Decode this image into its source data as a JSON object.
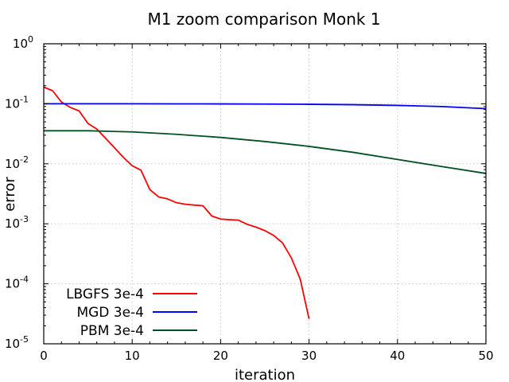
{
  "chart_data": {
    "type": "line",
    "title": "M1 zoom comparison Monk 1",
    "xlabel": "iteration",
    "ylabel": "error",
    "xlim": [
      0,
      50
    ],
    "ylim": [
      1e-05,
      1
    ],
    "yscale": "log",
    "grid": true,
    "legend_position": "lower-left",
    "xticks": [
      "0",
      "10",
      "20",
      "30",
      "40",
      "50"
    ],
    "yticks": [
      {
        "base": "10",
        "exp": "0",
        "value": 1
      },
      {
        "base": "10",
        "exp": "-1",
        "value": 0.1
      },
      {
        "base": "10",
        "exp": "-2",
        "value": 0.01
      },
      {
        "base": "10",
        "exp": "-3",
        "value": 0.001
      },
      {
        "base": "10",
        "exp": "-4",
        "value": 0.0001
      },
      {
        "base": "10",
        "exp": "-5",
        "value": 1e-05
      }
    ],
    "series": [
      {
        "name": "LBGFS 3e-4",
        "color": "#ff0000",
        "x": [
          0,
          1,
          2,
          3,
          4,
          5,
          6,
          7,
          8,
          9,
          10,
          11,
          12,
          13,
          14,
          15,
          16,
          17,
          18,
          19,
          20,
          21,
          22,
          23,
          24,
          25,
          26,
          27,
          28,
          29,
          30
        ],
        "y": [
          0.19,
          0.165,
          0.107,
          0.087,
          0.076,
          0.047,
          0.038,
          0.0265,
          0.0185,
          0.0128,
          0.0093,
          0.0078,
          0.0037,
          0.0028,
          0.0026,
          0.00225,
          0.00212,
          0.00205,
          0.002,
          0.00135,
          0.0012,
          0.00117,
          0.00115,
          0.00098,
          0.00088,
          0.00077,
          0.00064,
          0.00048,
          0.00027,
          0.00012,
          2.6e-05
        ]
      },
      {
        "name": "MGD 3e-4",
        "color": "#0000ff",
        "x": [
          0,
          5,
          10,
          15,
          20,
          25,
          30,
          35,
          40,
          45,
          50
        ],
        "y": [
          0.1,
          0.1,
          0.1,
          0.0998,
          0.0995,
          0.099,
          0.098,
          0.0965,
          0.094,
          0.09,
          0.083
        ]
      },
      {
        "name": "PBM 3e-4",
        "color": "#005020",
        "x": [
          0,
          5,
          10,
          15,
          20,
          25,
          30,
          35,
          40,
          45,
          50
        ],
        "y": [
          0.0355,
          0.0355,
          0.034,
          0.031,
          0.0275,
          0.0235,
          0.0195,
          0.0155,
          0.0118,
          0.009,
          0.0069
        ]
      }
    ]
  }
}
